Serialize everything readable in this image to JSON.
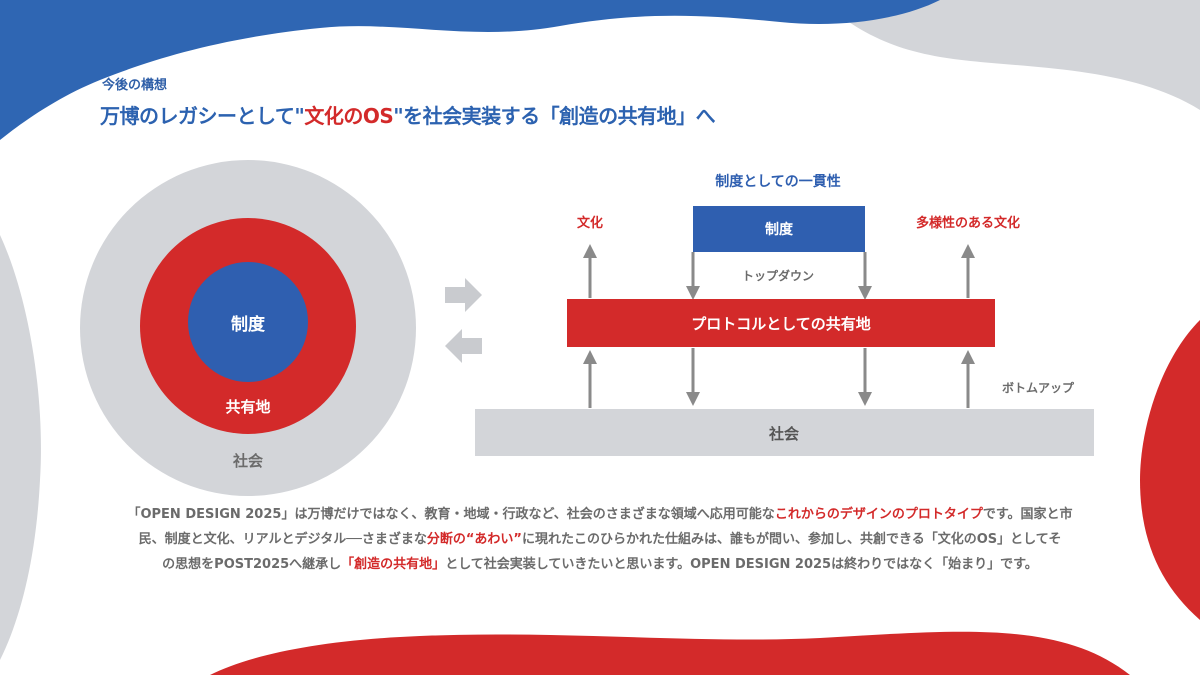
{
  "section_label": "今後の構想",
  "headline": {
    "part1": "万博のレガシーとして\"",
    "highlight": "文化のOS",
    "part2": "\"を社会実装する「創造の共有地」へ"
  },
  "circle_diagram": {
    "inner": "制度",
    "middle": "共有地",
    "outer": "社会"
  },
  "flow_diagram": {
    "top_title": "制度としての一貫性",
    "seido_box": "制度",
    "left_label": "文化",
    "right_label": "多様性のある文化",
    "topdown": "トップダウン",
    "protocol_bar": "プロトコルとしての共有地",
    "bottomup": "ボトムアップ",
    "shakai_bar": "社会"
  },
  "colors": {
    "blue": "#2f5fb0",
    "red": "#d32a2a",
    "gray": "#d3d5d9",
    "arrow_gray": "#8a8a8a"
  },
  "description": {
    "line1_a": "「OPEN DESIGN 2025」は万博だけではなく、教育・地域・行政など、社会のさまざまな領域へ応用可能な",
    "line1_red": "これからのデザインのプロトタイプ",
    "line1_b": "です。国家と市",
    "line2_a": "民、制度と文化、リアルとデジタル──さまざまな",
    "line2_red": "分断の“あわい”",
    "line2_b": "に現れたこのひらかれた仕組みは、誰もが問い、参加し、共創できる「文化のOS」としてそ",
    "line3_a": "の思想をPOST2025へ継承し",
    "line3_red": "「創造の共有地」",
    "line3_b": "として社会実装していきたいと思います。OPEN DESIGN 2025は終わりではなく「始まり」です。"
  }
}
